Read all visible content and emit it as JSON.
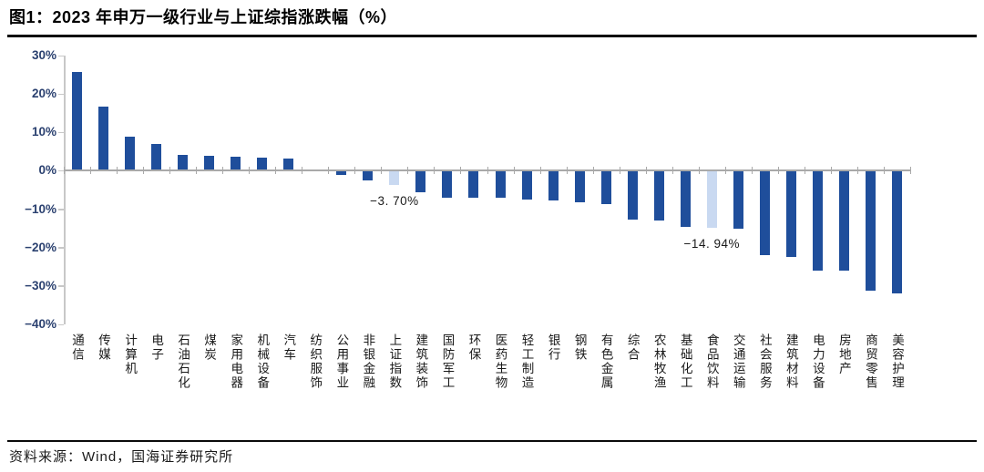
{
  "header": {
    "title": "图1：2023 年申万一级行业与上证综指涨跌幅（%）"
  },
  "footer": {
    "source": "资料来源：Wind，国海证券研究所"
  },
  "chart_data": {
    "type": "bar",
    "title": "2023 年申万一级行业与上证综指涨跌幅（%）",
    "xlabel": "",
    "ylabel": "",
    "ylim": [
      -40,
      30
    ],
    "grid": false,
    "legend": "none",
    "categories": [
      "通信",
      "传媒",
      "计算机",
      "电子",
      "石油石化",
      "煤炭",
      "家用电器",
      "机械设备",
      "汽车",
      "纺织服饰",
      "公用事业",
      "非银金融",
      "上证指数",
      "建筑装饰",
      "国防军工",
      "环保",
      "医药生物",
      "轻工制造",
      "银行",
      "钢铁",
      "有色金属",
      "综合",
      "农林牧渔",
      "基础化工",
      "食品饮料",
      "交通运输",
      "社会服务",
      "建筑材料",
      "电力设备",
      "房地产",
      "商贸零售",
      "美容护理"
    ],
    "values": [
      25.7,
      16.8,
      8.8,
      7.1,
      4.2,
      4.0,
      3.7,
      3.4,
      3.3,
      0.4,
      -1.2,
      -2.4,
      -3.7,
      -5.5,
      -6.9,
      -7.0,
      -7.1,
      -7.4,
      -7.8,
      -8.3,
      -8.6,
      -12.7,
      -13.0,
      -14.7,
      -14.94,
      -15.2,
      -21.9,
      -22.5,
      -26.0,
      -26.1,
      -31.2,
      -32.0
    ],
    "highlight_indices": [
      12,
      24
    ],
    "data_labels": [
      {
        "index": 12,
        "text": "−3. 70%"
      },
      {
        "index": 24,
        "text": "−14. 94%"
      }
    ],
    "yticks": [
      {
        "value": 30,
        "label": "30%"
      },
      {
        "value": 20,
        "label": "20%"
      },
      {
        "value": 10,
        "label": "10%"
      },
      {
        "value": 0,
        "label": "0%"
      },
      {
        "value": -10,
        "label": "−10%"
      },
      {
        "value": -20,
        "label": "−20%"
      },
      {
        "value": -30,
        "label": "−30%"
      },
      {
        "value": -40,
        "label": "−40%"
      }
    ],
    "colors": {
      "bar": "#1F4E9B",
      "highlight": "#C9D9F1",
      "axis_label": "#2B4170",
      "axis_line": "#A9A9A9",
      "spine": "#C8C8C8"
    }
  }
}
